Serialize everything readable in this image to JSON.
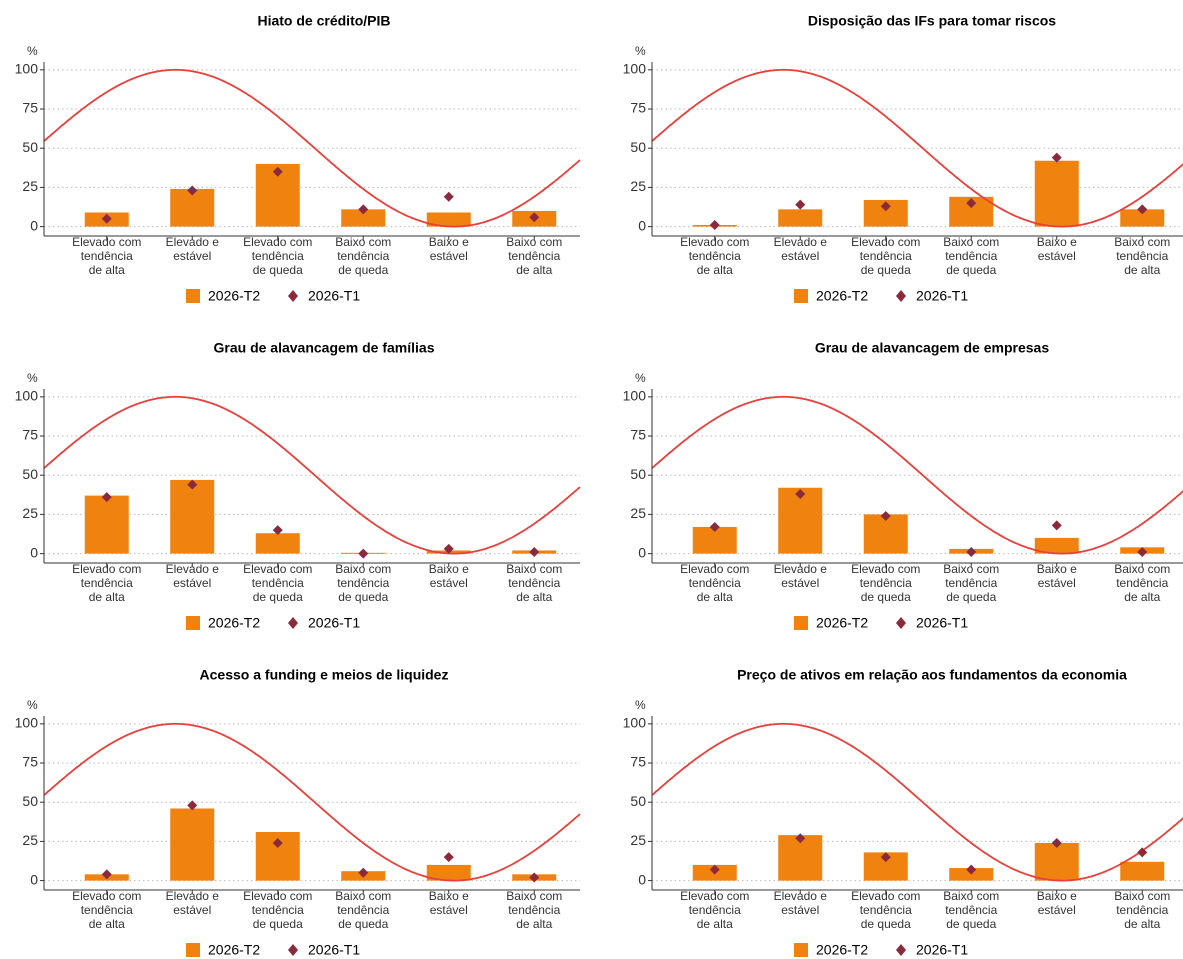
{
  "chart_data": [
    {
      "type": "bar",
      "title": "Hiato de crédito/PIB",
      "y_label": "%",
      "categories": [
        [
          "Elevado com",
          "tendência",
          "de alta"
        ],
        [
          "Elevado e",
          "estável"
        ],
        [
          "Elevado com",
          "tendência",
          "de queda"
        ],
        [
          "Baixo com",
          "tendência",
          "de queda"
        ],
        [
          "Baixo e",
          "estável"
        ],
        [
          "Baixo com",
          "tendência",
          "de alta"
        ]
      ],
      "series": [
        {
          "name": "2026-T2",
          "mark": "bar",
          "color": "#f0820f",
          "values": [
            9,
            24,
            40,
            11,
            9,
            10
          ]
        },
        {
          "name": "2026-T1",
          "mark": "diamond",
          "color": "#8b2a3a",
          "values": [
            5,
            23,
            35,
            11,
            19,
            6
          ]
        }
      ],
      "ylim": [
        -6,
        105
      ],
      "yticks": [
        0,
        25,
        50,
        75,
        100
      ],
      "grid": true
    },
    {
      "type": "bar",
      "title": "Disposição das IFs para tomar riscos",
      "y_label": "%",
      "categories": [
        [
          "Elevado com",
          "tendência",
          "de alta"
        ],
        [
          "Elevado e",
          "estável"
        ],
        [
          "Elevado com",
          "tendência",
          "de queda"
        ],
        [
          "Baixo com",
          "tendência",
          "de queda"
        ],
        [
          "Baixo e",
          "estável"
        ],
        [
          "Baixo com",
          "tendência",
          "de alta"
        ]
      ],
      "series": [
        {
          "name": "2026-T2",
          "mark": "bar",
          "color": "#f0820f",
          "values": [
            1,
            11,
            17,
            19,
            42,
            11
          ]
        },
        {
          "name": "2026-T1",
          "mark": "diamond",
          "color": "#8b2a3a",
          "values": [
            1,
            14,
            13,
            15,
            44,
            11
          ]
        }
      ],
      "ylim": [
        -6,
        105
      ],
      "yticks": [
        0,
        25,
        50,
        75,
        100
      ],
      "grid": true
    },
    {
      "type": "bar",
      "title": "Grau de alavancagem de famílias",
      "y_label": "%",
      "categories": [
        [
          "Elevado com",
          "tendência",
          "de alta"
        ],
        [
          "Elevado e",
          "estável"
        ],
        [
          "Elevado com",
          "tendência",
          "de queda"
        ],
        [
          "Baixo com",
          "tendência",
          "de queda"
        ],
        [
          "Baixo e",
          "estável"
        ],
        [
          "Baixo com",
          "tendência",
          "de alta"
        ]
      ],
      "series": [
        {
          "name": "2026-T2",
          "mark": "bar",
          "color": "#f0820f",
          "values": [
            37,
            47,
            13,
            0.5,
            2,
            2
          ]
        },
        {
          "name": "2026-T1",
          "mark": "diamond",
          "color": "#8b2a3a",
          "values": [
            36,
            44,
            15,
            0,
            3,
            1
          ]
        }
      ],
      "ylim": [
        -6,
        105
      ],
      "yticks": [
        0,
        25,
        50,
        75,
        100
      ],
      "grid": true
    },
    {
      "type": "bar",
      "title": "Grau de alavancagem de empresas",
      "y_label": "%",
      "categories": [
        [
          "Elevado com",
          "tendência",
          "de alta"
        ],
        [
          "Elevado e",
          "estável"
        ],
        [
          "Elevado com",
          "tendência",
          "de queda"
        ],
        [
          "Baixo com",
          "tendência",
          "de queda"
        ],
        [
          "Baixo e",
          "estável"
        ],
        [
          "Baixo com",
          "tendência",
          "de alta"
        ]
      ],
      "series": [
        {
          "name": "2026-T2",
          "mark": "bar",
          "color": "#f0820f",
          "values": [
            17,
            42,
            25,
            3,
            10,
            4
          ]
        },
        {
          "name": "2026-T1",
          "mark": "diamond",
          "color": "#8b2a3a",
          "values": [
            17,
            38,
            24,
            1,
            18,
            1
          ]
        }
      ],
      "ylim": [
        -6,
        105
      ],
      "yticks": [
        0,
        25,
        50,
        75,
        100
      ],
      "grid": true
    },
    {
      "type": "bar",
      "title": "Acesso a funding e meios de liquidez",
      "y_label": "%",
      "categories": [
        [
          "Elevado com",
          "tendência",
          "de alta"
        ],
        [
          "Elevado e",
          "estável"
        ],
        [
          "Elevado com",
          "tendência",
          "de queda"
        ],
        [
          "Baixo com",
          "tendência",
          "de queda"
        ],
        [
          "Baixo e",
          "estável"
        ],
        [
          "Baixo com",
          "tendência",
          "de alta"
        ]
      ],
      "series": [
        {
          "name": "2026-T2",
          "mark": "bar",
          "color": "#f0820f",
          "values": [
            4,
            46,
            31,
            6,
            10,
            4
          ]
        },
        {
          "name": "2026-T1",
          "mark": "diamond",
          "color": "#8b2a3a",
          "values": [
            4,
            48,
            24,
            5,
            15,
            2
          ]
        }
      ],
      "ylim": [
        -6,
        105
      ],
      "yticks": [
        0,
        25,
        50,
        75,
        100
      ],
      "grid": true
    },
    {
      "type": "bar",
      "title": "Preço de ativos em relação aos fundamentos da economia",
      "y_label": "%",
      "categories": [
        [
          "Elevado com",
          "tendência",
          "de alta"
        ],
        [
          "Elevado e",
          "estável"
        ],
        [
          "Elevado com",
          "tendência",
          "de queda"
        ],
        [
          "Baixo com",
          "tendência",
          "de queda"
        ],
        [
          "Baixo e",
          "estável"
        ],
        [
          "Baixo com",
          "tendência",
          "de alta"
        ]
      ],
      "series": [
        {
          "name": "2026-T2",
          "mark": "bar",
          "color": "#f0820f",
          "values": [
            10,
            29,
            18,
            8,
            24,
            12
          ]
        },
        {
          "name": "2026-T1",
          "mark": "diamond",
          "color": "#8b2a3a",
          "values": [
            7,
            27,
            15,
            7,
            24,
            18
          ]
        }
      ],
      "ylim": [
        -6,
        105
      ],
      "yticks": [
        0,
        25,
        50,
        75,
        100
      ],
      "grid": true
    }
  ]
}
